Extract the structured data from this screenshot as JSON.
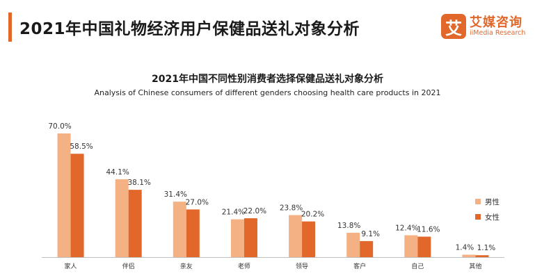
{
  "header": {
    "title": "2021年中国礼物经济用户保健品送礼对象分析"
  },
  "logo": {
    "mark": "艾",
    "name_cn": "艾媒咨询",
    "name_en": "iiMedia Research"
  },
  "colors": {
    "accent": "#e2672a",
    "male": "#f4b183",
    "female": "#e2672a",
    "axis": "#bfbfbf"
  },
  "chart_data": {
    "type": "bar",
    "title": "2021年中国不同性别消费者选择保健品送礼对象分析",
    "subtitle": "Analysis of Chinese consumers of different genders choosing health care products in 2021",
    "categories": [
      "家人",
      "伴侣",
      "亲友",
      "老师",
      "领导",
      "客户",
      "自己",
      "其他"
    ],
    "series": [
      {
        "name": "男性",
        "values": [
          70.0,
          44.1,
          31.4,
          21.4,
          23.8,
          13.8,
          12.4,
          1.4
        ],
        "labels": [
          "70.0%",
          "44.1%",
          "31.4%",
          "21.4%",
          "23.8%",
          "13.8%",
          "12.4%",
          "1.4%"
        ]
      },
      {
        "name": "女性",
        "values": [
          58.5,
          38.1,
          27.0,
          22.0,
          20.2,
          9.1,
          11.6,
          1.1
        ],
        "labels": [
          "58.5%",
          "38.1%",
          "27.0%",
          "22.0%",
          "20.2%",
          "9.1%",
          "11.6%",
          "1.1%"
        ]
      }
    ],
    "ylim": [
      0,
      70
    ],
    "grid": false,
    "legend_position": "right"
  }
}
